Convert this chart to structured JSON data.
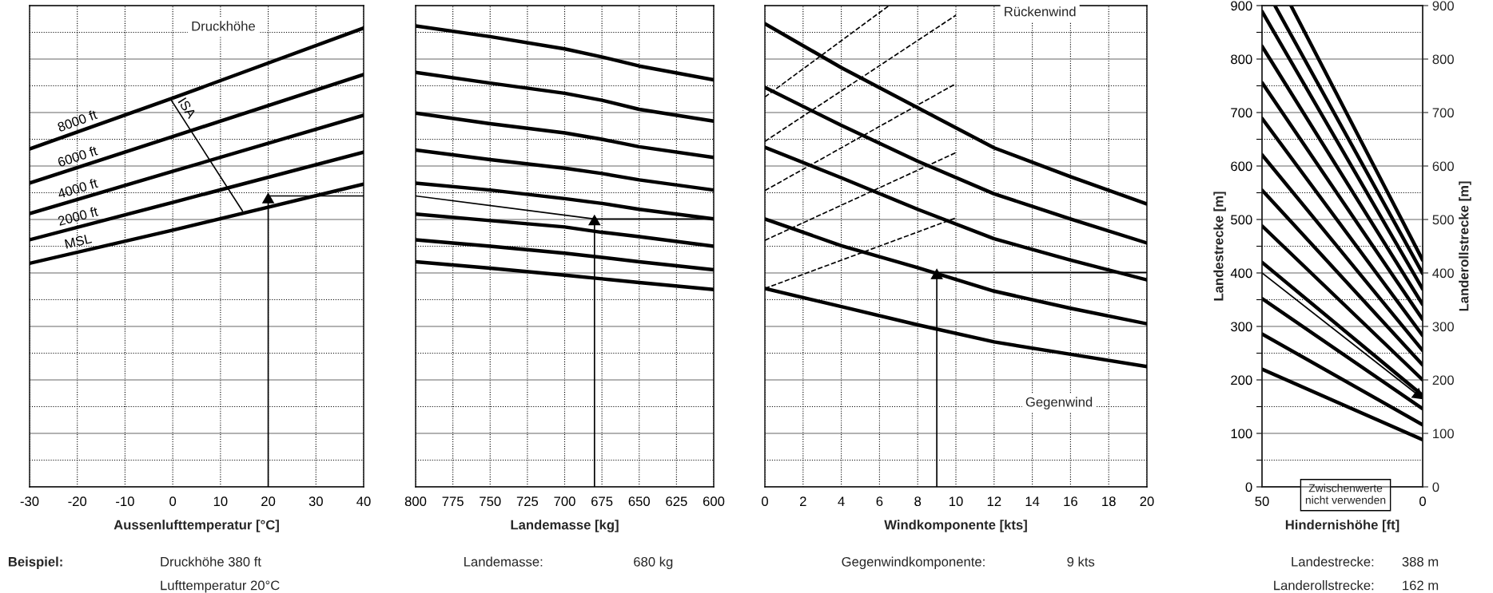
{
  "chart_data": [
    {
      "type": "line",
      "xlabel": "Aussenlufttemperatur [°C]",
      "x": [
        -30,
        0,
        40
      ],
      "xlim": [
        -30,
        40
      ],
      "xticks": [
        -30,
        -20,
        -10,
        0,
        10,
        20,
        30,
        40
      ],
      "ylim": [
        0,
        900
      ],
      "yticks": [
        0,
        {
          "value": 50,
          "label": null
        },
        100,
        {
          "value": 150,
          "label": null
        },
        200,
        {
          "value": 250,
          "label": null
        },
        300,
        {
          "value": 350,
          "label": null
        },
        400,
        {
          "value": 450,
          "label": null
        },
        500,
        {
          "value": 550,
          "label": null
        },
        600,
        {
          "value": 650,
          "label": null
        },
        700,
        {
          "value": 750,
          "label": null
        },
        800,
        {
          "value": 850,
          "label": null
        },
        900
      ],
      "tick_labels": "x",
      "grid": true,
      "legend": false,
      "series": [
        {
          "name": "8000 ft",
          "color": "#000000",
          "values": [
            632,
            727,
            858
          ]
        },
        {
          "name": "6000 ft",
          "color": "#000000",
          "values": [
            568,
            655,
            771
          ]
        },
        {
          "name": "4000 ft",
          "color": "#000000",
          "values": [
            511,
            590,
            695
          ]
        },
        {
          "name": "2000 ft",
          "color": "#000000",
          "values": [
            462,
            532,
            626
          ]
        },
        {
          "name": "MSL",
          "color": "#000000",
          "values": [
            418,
            480,
            566
          ]
        },
        {
          "name": "ISA",
          "color": "#000000",
          "x": [
            -0.6,
            14.6
          ],
          "values": [
            727,
            516
          ],
          "marker": "none"
        },
        {
          "color": "#000000",
          "x": [
            20,
            20
          ],
          "values": [
            0,
            537
          ],
          "marker": "triangle"
        },
        {
          "color": "#000000",
          "x": [
            20,
            40
          ],
          "values": [
            544,
            544
          ],
          "marker": "none"
        }
      ],
      "annotations": [
        "Druckhöhe",
        "Beispiel:",
        "Druckhöhe 380 ft",
        "Lufttemperatur 20°C"
      ]
    },
    {
      "type": "line",
      "xlabel": "Landemasse [kg]",
      "x": [
        800,
        750,
        700,
        675,
        650,
        600
      ],
      "xlim": [
        800,
        600
      ],
      "xticks": [
        800,
        775,
        750,
        725,
        700,
        675,
        650,
        625,
        600
      ],
      "ylim": [
        0,
        900
      ],
      "yticks": [
        0,
        {
          "value": 50,
          "label": null
        },
        100,
        {
          "value": 150,
          "label": null
        },
        200,
        {
          "value": 250,
          "label": null
        },
        300,
        {
          "value": 350,
          "label": null
        },
        400,
        {
          "value": 450,
          "label": null
        },
        500,
        {
          "value": 550,
          "label": null
        },
        600,
        {
          "value": 650,
          "label": null
        },
        700,
        {
          "value": 750,
          "label": null
        },
        800,
        {
          "value": 850,
          "label": null
        },
        900
      ],
      "tick_labels": "x",
      "grid": true,
      "legend": false,
      "series": [
        {
          "color": "#000000",
          "values": [
            862,
            842,
            819,
            804,
            787,
            761
          ]
        },
        {
          "color": "#000000",
          "values": [
            775,
            755,
            736,
            723,
            706,
            684
          ]
        },
        {
          "color": "#000000",
          "values": [
            699,
            679,
            662,
            650,
            636,
            616
          ]
        },
        {
          "color": "#000000",
          "values": [
            630,
            612,
            596,
            586,
            574,
            555
          ]
        },
        {
          "color": "#000000",
          "values": [
            568,
            555,
            539,
            530,
            519,
            501
          ]
        },
        {
          "color": "#000000",
          "values": [
            510,
            498,
            486,
            476,
            468,
            450
          ]
        },
        {
          "color": "#000000",
          "values": [
            462,
            450,
            437,
            429,
            421,
            406
          ]
        },
        {
          "color": "#000000",
          "values": [
            421,
            409,
            396,
            389,
            382,
            369
          ]
        },
        {
          "color": "#000000",
          "x": [
            800,
            680,
            600
          ],
          "values": [
            544,
            501,
            501
          ],
          "marker": "none"
        },
        {
          "color": "#000000",
          "x": [
            680,
            680
          ],
          "values": [
            0,
            496
          ],
          "marker": "triangle"
        }
      ],
      "annotations": [
        "Landemasse:",
        "680 kg"
      ]
    },
    {
      "type": "line",
      "xlabel": "Windkomponente [kts]",
      "x": [
        0,
        4,
        8,
        12,
        16,
        20
      ],
      "xlim": [
        0,
        20
      ],
      "xticks": [
        0,
        2,
        4,
        6,
        8,
        10,
        12,
        14,
        16,
        18,
        20
      ],
      "ylim": [
        0,
        900
      ],
      "yticks": [
        0,
        {
          "value": 50,
          "label": null
        },
        100,
        {
          "value": 150,
          "label": null
        },
        200,
        {
          "value": 250,
          "label": null
        },
        300,
        {
          "value": 350,
          "label": null
        },
        400,
        {
          "value": 450,
          "label": null
        },
        500,
        {
          "value": 550,
          "label": null
        },
        600,
        {
          "value": 650,
          "label": null
        },
        700,
        {
          "value": 750,
          "label": null
        },
        800,
        {
          "value": 850,
          "label": null
        },
        900
      ],
      "tick_labels": "x",
      "grid": true,
      "legend": false,
      "series": [
        {
          "color": "#000000",
          "values": [
            866,
            784,
            709,
            634,
            580,
            529
          ]
        },
        {
          "color": "#000000",
          "values": [
            747,
            676,
            609,
            548,
            501,
            456
          ]
        },
        {
          "color": "#000000",
          "values": [
            635,
            578,
            519,
            464,
            424,
            387
          ]
        },
        {
          "color": "#000000",
          "values": [
            501,
            451,
            410,
            366,
            334,
            305
          ]
        },
        {
          "color": "#000000",
          "values": [
            371,
            337,
            303,
            271,
            248,
            225
          ]
        },
        {
          "color": "#000000",
          "x": [
            0,
            6.5
          ],
          "values": [
            729,
            900
          ],
          "line_style": "dashed"
        },
        {
          "color": "#000000",
          "x": [
            0,
            10
          ],
          "values": [
            646,
            882
          ],
          "line_style": "dashed"
        },
        {
          "color": "#000000",
          "x": [
            0,
            10
          ],
          "values": [
            554,
            754
          ],
          "line_style": "dashed"
        },
        {
          "color": "#000000",
          "x": [
            0,
            10
          ],
          "values": [
            461,
            625
          ],
          "line_style": "dashed"
        },
        {
          "color": "#000000",
          "x": [
            0,
            10
          ],
          "values": [
            371,
            503
          ],
          "line_style": "dashed"
        },
        {
          "color": "#000000",
          "x": [
            9,
            9
          ],
          "values": [
            0,
            395
          ],
          "marker": "triangle"
        },
        {
          "color": "#000000",
          "x": [
            9,
            20
          ],
          "values": [
            401,
            401
          ],
          "marker": "none"
        }
      ],
      "annotations": [
        "Rückenwind",
        "Gegenwind",
        "Gegenwindkomponente:",
        "9 kts"
      ]
    },
    {
      "type": "line",
      "xlabel": "Hindernishöhe [ft]",
      "ylabel": "Landestrecke [m]",
      "y2label": "Landerollstrecke [m]",
      "x": [
        50,
        0
      ],
      "xlim": [
        50,
        0
      ],
      "xticks": [
        50,
        0
      ],
      "ylim": [
        0,
        900
      ],
      "yticks": [
        0,
        {
          "value": 50,
          "label": null
        },
        100,
        {
          "value": 150,
          "label": null
        },
        200,
        {
          "value": 250,
          "label": null
        },
        300,
        {
          "value": 350,
          "label": null
        },
        400,
        {
          "value": 450,
          "label": null
        },
        500,
        {
          "value": 550,
          "label": null
        },
        600,
        {
          "value": 650,
          "label": null
        },
        700,
        {
          "value": 750,
          "label": null
        },
        800,
        {
          "value": 850,
          "label": null
        },
        900
      ],
      "y2lim": [
        0,
        900
      ],
      "y2ticks": [
        0,
        100,
        200,
        300,
        400,
        500,
        600,
        700,
        800,
        900
      ],
      "grid": "y",
      "legend": false,
      "series": [
        {
          "color": "#000000",
          "x": [
            41,
            0
          ],
          "values": [
            900,
            424
          ]
        },
        {
          "color": "#000000",
          "x": [
            46,
            0
          ],
          "values": [
            900,
            399
          ]
        },
        {
          "color": "#000000",
          "values": [
            889,
            370
          ]
        },
        {
          "color": "#000000",
          "values": [
            824,
            341
          ]
        },
        {
          "color": "#000000",
          "values": [
            756,
            313
          ]
        },
        {
          "color": "#000000",
          "values": [
            689,
            283
          ]
        },
        {
          "color": "#000000",
          "values": [
            621,
            255
          ]
        },
        {
          "color": "#000000",
          "values": [
            555,
            228
          ]
        },
        {
          "color": "#000000",
          "values": [
            488,
            200
          ]
        },
        {
          "color": "#000000",
          "values": [
            420,
            171
          ]
        },
        {
          "color": "#000000",
          "values": [
            352,
            146
          ]
        },
        {
          "color": "#000000",
          "values": [
            286,
            116
          ]
        },
        {
          "color": "#000000",
          "values": [
            220,
            88
          ]
        },
        {
          "color": "#000000",
          "x": [
            50,
            1.5
          ],
          "values": [
            400,
            172
          ],
          "marker": "triangle"
        }
      ],
      "annotations": [
        "Zwischenwerte\nnicht verwenden",
        "Landestrecke:",
        "388 m",
        "Landerollstrecke:",
        "162 m"
      ]
    }
  ]
}
